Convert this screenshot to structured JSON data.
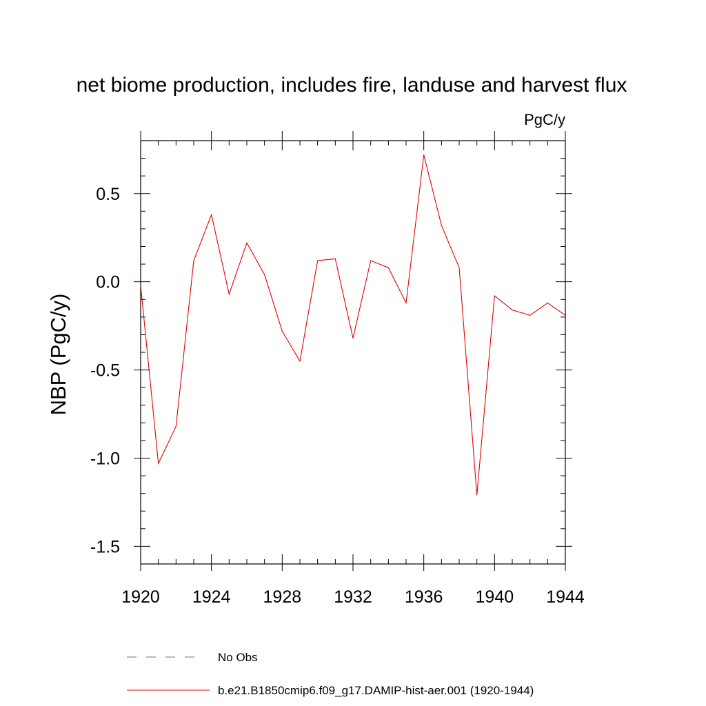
{
  "chart_data": {
    "type": "line",
    "title": "net biome production, includes fire, landuse and harvest flux",
    "units": "PgC/y",
    "xlabel": "",
    "ylabel": "NBP  (PgC/y)",
    "xlim": [
      1920,
      1944
    ],
    "ylim": [
      -1.6,
      0.8
    ],
    "x_ticks": [
      1920,
      1924,
      1928,
      1932,
      1936,
      1940,
      1944
    ],
    "x_tick_labels": [
      "1920",
      "1924",
      "1928",
      "1932",
      "1936",
      "1940",
      "1944"
    ],
    "y_ticks": [
      -1.5,
      -1.0,
      -0.5,
      0.0,
      0.5
    ],
    "y_tick_labels": [
      "-1.5",
      "-1.0",
      "-0.5",
      "0.0",
      "0.5"
    ],
    "grid": false,
    "legend_position": "bottom",
    "legend": [
      {
        "label": "No Obs",
        "color": "#6a6ab8",
        "style": "dashed"
      },
      {
        "label": "b.e21.B1850cmip6.f09_g17.DAMIP-hist-aer.001 (1920-1944)",
        "color": "#e00000",
        "style": "solid"
      }
    ],
    "series": [
      {
        "name": "b.e21.B1850cmip6.f09_g17.DAMIP-hist-aer.001 (1920-1944)",
        "color": "#e00000",
        "x": [
          1920,
          1921,
          1922,
          1923,
          1924,
          1925,
          1926,
          1927,
          1928,
          1929,
          1930,
          1931,
          1932,
          1933,
          1934,
          1935,
          1936,
          1937,
          1938,
          1939,
          1940,
          1941,
          1942,
          1943,
          1944
        ],
        "y": [
          -0.02,
          -1.03,
          -0.82,
          0.12,
          0.38,
          -0.07,
          0.22,
          0.04,
          -0.28,
          -0.45,
          0.12,
          0.13,
          -0.32,
          0.12,
          0.08,
          -0.12,
          0.72,
          0.32,
          0.08,
          -1.21,
          -0.08,
          -0.16,
          -0.19,
          -0.12,
          -0.19
        ]
      }
    ]
  }
}
